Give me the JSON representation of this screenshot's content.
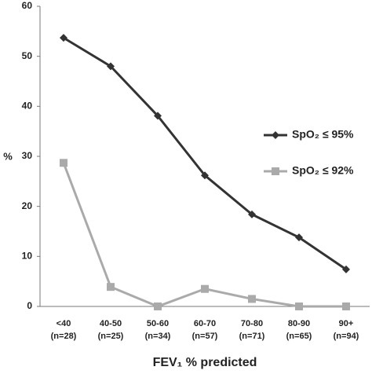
{
  "chart_data": {
    "type": "line",
    "x_label": "FEV₁ % predicted",
    "y_label": "%",
    "categories": [
      "<40\n(n=28)",
      "40-50\n(n=25)",
      "50-60\n(n=34)",
      "60-70\n(n=57)",
      "70-80\n(n=71)",
      "80-90\n(n=65)",
      "90+\n(n=94)"
    ],
    "series": [
      {
        "name": "SpO₂ ≤ 95%",
        "color": "#333333",
        "marker": "diamond",
        "values": [
          53.7,
          48.0,
          38.1,
          26.2,
          18.4,
          13.8,
          7.4
        ]
      },
      {
        "name": "SpO₂ ≤ 92%",
        "color": "#aaaaaa",
        "marker": "square",
        "values": [
          28.7,
          3.9,
          0,
          3.5,
          1.5,
          0,
          0
        ]
      }
    ],
    "ylim": [
      0,
      60
    ],
    "yticks": [
      0,
      10,
      20,
      30,
      40,
      50,
      60
    ],
    "grid": false
  }
}
